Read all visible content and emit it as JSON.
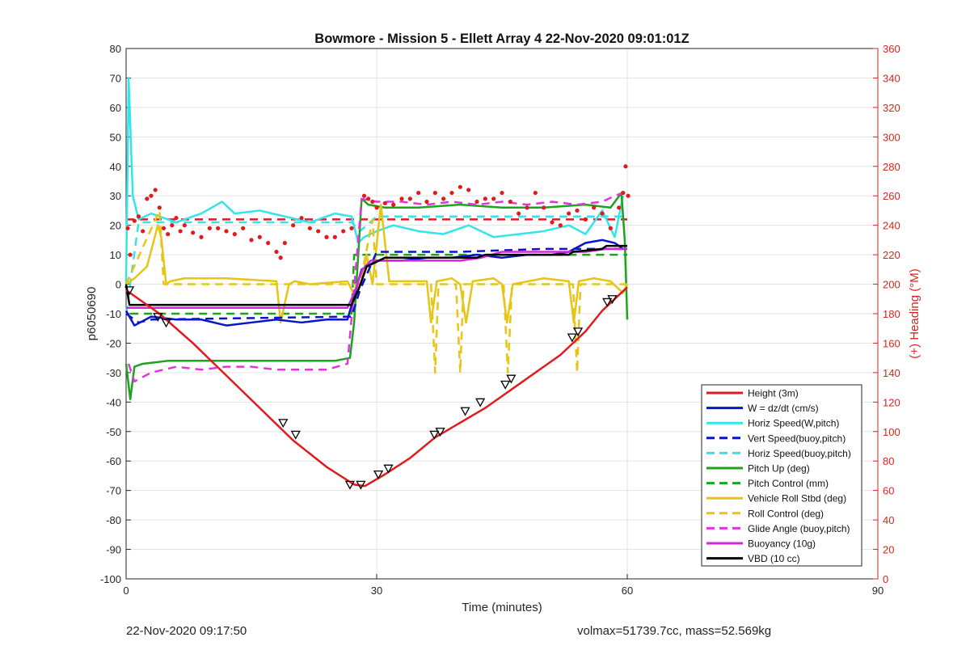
{
  "chart_data": {
    "type": "line",
    "title": "Bowmore - Mission 5 - Ellett Array 4 22-Nov-2020 09:01:01Z",
    "xlabel": "Time (minutes)",
    "ylabel": "p6050690",
    "y2label": "(+) Heading (°M)",
    "xlim": [
      0,
      90
    ],
    "ylim": [
      -100,
      80
    ],
    "y2lim": [
      0,
      360
    ],
    "xticks": [
      "0",
      "30",
      "60",
      "90"
    ],
    "yticks": [
      "80",
      "70",
      "60",
      "50",
      "40",
      "30",
      "20",
      "10",
      "0",
      "-10",
      "-20",
      "-30",
      "-40",
      "-50",
      "-60",
      "-70",
      "-80",
      "-90",
      "-100"
    ],
    "y2ticks": [
      "360",
      "340",
      "320",
      "300",
      "280",
      "260",
      "240",
      "220",
      "200",
      "180",
      "160",
      "140",
      "120",
      "100",
      "80",
      "60",
      "40",
      "20",
      "0"
    ],
    "grid": true,
    "legend_position": "bottom-right",
    "colors": {
      "height": "#e31a1c",
      "w": "#0a14c8",
      "horiz": "#33e5e8",
      "pitch": "#1aa51a",
      "roll": "#e6c514",
      "glide": "#e333e0",
      "buoyancy": "#d428d8",
      "vbd": "#000000",
      "heading_axis": "#d4261d"
    },
    "series": [
      {
        "name": "Height (3m)",
        "key": "height",
        "style": "solid",
        "x": [
          0,
          4,
          8,
          12,
          16,
          20,
          24,
          27.3,
          28.6,
          31,
          34,
          37,
          40,
          43,
          46,
          49,
          52,
          55,
          57,
          58.5,
          60
        ],
        "y": [
          -2,
          -10,
          -20,
          -31,
          -42,
          -53,
          -62,
          -68,
          -68.5,
          -64.5,
          -59,
          -52,
          -47,
          -42,
          -36,
          -30,
          -24,
          -16,
          -9,
          -5,
          -1
        ]
      },
      {
        "name": "W = dz/dt (cm/s)",
        "key": "w",
        "style": "solid",
        "x": [
          0,
          1,
          3,
          6,
          9,
          12,
          15,
          18,
          21,
          24,
          26.5,
          27.2,
          28.2,
          30,
          33,
          36,
          39,
          42,
          45,
          48,
          51,
          53,
          55,
          57,
          58.5,
          59.5,
          60
        ],
        "y": [
          -9,
          -14,
          -11,
          -12,
          -12,
          -14,
          -13,
          -12,
          -13,
          -12,
          -12,
          -5,
          5,
          8,
          8,
          9,
          9,
          10,
          9,
          10,
          10,
          11,
          14,
          15,
          14,
          12,
          12
        ]
      },
      {
        "name": "Horiz Speed(W,pitch)",
        "key": "horiz",
        "style": "solid",
        "x": [
          0,
          0.3,
          0.8,
          1.5,
          3,
          6,
          9,
          11.5,
          13,
          16,
          19,
          22,
          25,
          27,
          27.8,
          28.5,
          30,
          32,
          35,
          38,
          41,
          44,
          47,
          50,
          53,
          55,
          57,
          58.5,
          59.5
        ],
        "y": [
          0,
          70,
          30,
          22,
          24,
          21,
          24,
          28,
          24,
          25,
          23,
          21,
          24,
          23,
          14,
          16,
          18,
          20,
          18,
          17,
          20,
          16,
          17,
          18,
          20,
          17,
          25,
          16,
          30
        ]
      },
      {
        "name": "Vert Speed(buoy,pitch)",
        "key": "w",
        "style": "dashed",
        "x": [
          0,
          1.5,
          3,
          27,
          28,
          30,
          40,
          50,
          58,
          60
        ],
        "y": [
          -10,
          -13,
          -12,
          -11,
          -2,
          11,
          11,
          12,
          12,
          12
        ]
      },
      {
        "name": "Horiz Speed(buoy,pitch)",
        "key": "horiz",
        "style": "dashed",
        "x": [
          0,
          1.5,
          27,
          28,
          30,
          58,
          60
        ],
        "y": [
          -10,
          21,
          21,
          18,
          23,
          23,
          23
        ]
      },
      {
        "name": "Pitch Up (deg)",
        "key": "pitch",
        "style": "solid",
        "x": [
          0,
          0.5,
          1,
          2,
          5,
          10,
          15,
          20,
          25,
          26.8,
          27.3,
          28.2,
          29,
          31,
          35,
          40,
          45,
          50,
          55,
          58,
          59.3,
          59.7,
          60
        ],
        "y": [
          -27,
          -39,
          -28,
          -27,
          -26,
          -26,
          -26,
          -26,
          -26,
          -25,
          -13,
          29,
          27,
          26,
          26,
          27,
          26,
          26,
          27,
          26,
          31,
          15,
          -12
        ]
      },
      {
        "name": "Pitch Control (mm)",
        "key": "pitch",
        "style": "dashed",
        "x": [
          0.5,
          27,
          27.3,
          28.3,
          60
        ],
        "y": [
          -10,
          -10,
          10,
          10,
          10
        ]
      },
      {
        "name": "Vehicle Roll Stbd (deg)",
        "key": "roll",
        "style": "solid",
        "x": [
          0,
          1,
          2.5,
          3.8,
          4.2,
          4.8,
          5.3,
          7,
          12,
          18,
          18.5,
          19.5,
          20.2,
          22,
          26.5,
          27.2,
          28.2,
          28.8,
          29.5,
          30.5,
          31.5,
          33,
          36,
          36.5,
          37.2,
          39,
          40,
          40.7,
          41.5,
          44,
          45,
          45.6,
          46.3,
          50,
          53,
          53.6,
          54.2,
          56,
          58,
          59.5,
          60
        ],
        "y": [
          0,
          2,
          6,
          20,
          16,
          0,
          1,
          2,
          2,
          1,
          -13,
          0,
          1,
          0,
          1,
          -3,
          0,
          10,
          0,
          27,
          1,
          1,
          1,
          -13,
          1,
          2,
          0,
          -13,
          1,
          2,
          0,
          -13,
          0,
          2,
          1,
          -13,
          1,
          2,
          1,
          -3,
          0
        ]
      },
      {
        "name": "Roll Control (deg)",
        "key": "roll",
        "style": "dashed",
        "x": [
          0,
          4,
          4.5,
          27,
          28,
          29.5,
          30,
          31,
          36.5,
          37,
          37.4,
          39.5,
          40,
          40.4,
          42.5,
          45.2,
          45.7,
          46.2,
          53.5,
          54,
          54.4,
          60
        ],
        "y": [
          0,
          25,
          0,
          0,
          0,
          22,
          0,
          0,
          0,
          -30,
          0,
          0,
          -30,
          0,
          0,
          0,
          -30,
          0,
          0,
          -30,
          0,
          0
        ]
      },
      {
        "name": "Glide Angle (buoy,pitch)",
        "key": "glide",
        "style": "dashed",
        "x": [
          0.3,
          1,
          3,
          6,
          9,
          12,
          15,
          18,
          21,
          24,
          26.5,
          27.2,
          28.2,
          30,
          33,
          36,
          39,
          42,
          45,
          48,
          51,
          54,
          57,
          58.5,
          59.5
        ],
        "y": [
          -27,
          -33,
          -30,
          -28,
          -29,
          -28,
          -28,
          -29,
          -29,
          -29,
          -27,
          -5,
          29,
          28,
          28,
          27,
          28,
          27,
          28,
          27,
          28,
          27,
          28,
          30,
          31
        ]
      },
      {
        "name": "Buoyancy (10g)",
        "key": "buoyancy",
        "style": "solid",
        "x": [
          0,
          1,
          26.5,
          27.3,
          28.3,
          29.3,
          32,
          40,
          42.5,
          45,
          55,
          57.5,
          60
        ],
        "y": [
          -8,
          -8,
          -8,
          -3,
          5,
          8,
          8,
          8,
          9,
          11,
          11,
          12,
          12
        ]
      },
      {
        "name": "VBD (10 cc)",
        "key": "vbd",
        "style": "solid",
        "x": [
          0,
          0.4,
          27,
          27.8,
          28.8,
          31,
          42,
          43,
          53,
          53.5,
          57,
          57.5,
          60
        ],
        "y": [
          0,
          -7,
          -7,
          -2,
          6,
          9,
          9,
          10,
          10,
          11,
          12,
          13,
          13
        ]
      }
    ],
    "heading_dashed": {
      "x": [
        0,
        27,
        27.3,
        60
      ],
      "y": [
        244,
        244,
        244,
        244
      ]
    },
    "heading_dots": {
      "x": [
        0.2,
        0.5,
        1,
        1.5,
        2,
        2.5,
        3,
        3.5,
        4,
        4.5,
        5,
        5.5,
        6,
        6.5,
        7,
        8,
        9,
        10,
        11,
        12,
        13,
        14,
        15,
        16,
        17,
        18,
        18.5,
        19,
        20,
        21,
        22,
        23,
        24,
        25,
        26,
        27,
        28.5,
        29,
        29.5,
        30,
        31,
        32,
        33,
        34,
        35,
        36,
        37,
        38,
        39,
        40,
        41,
        42,
        43,
        44,
        45,
        46,
        47,
        48,
        49,
        50,
        51,
        52,
        53,
        54,
        55,
        56,
        57,
        58,
        59,
        59.5,
        59.8,
        60.1
      ],
      "y": [
        238,
        220,
        243,
        246,
        236,
        258,
        260,
        264,
        252,
        238,
        234,
        240,
        245,
        236,
        240,
        235,
        232,
        238,
        238,
        236,
        234,
        238,
        230,
        232,
        228,
        222,
        218,
        228,
        240,
        245,
        238,
        236,
        232,
        232,
        236,
        238,
        260,
        258,
        256,
        252,
        255,
        254,
        258,
        258,
        262,
        256,
        262,
        258,
        262,
        266,
        264,
        256,
        258,
        258,
        262,
        256,
        248,
        252,
        262,
        252,
        242,
        240,
        248,
        250,
        244,
        252,
        248,
        238,
        252,
        262,
        280,
        260
      ]
    },
    "triangles": {
      "x": [
        0.4,
        3.8,
        4.8,
        18.8,
        20.3,
        26.8,
        28.1,
        30.2,
        31.4,
        36.9,
        37.6,
        40.6,
        42.4,
        45.4,
        46.1,
        53.4,
        54.1,
        57.6,
        58.2
      ],
      "y": [
        -2,
        -11,
        -13,
        -47,
        -51,
        -68,
        -68,
        -64.5,
        -62.5,
        -51,
        -50,
        -43,
        -40,
        -34,
        -32,
        -18,
        -16,
        -6,
        -5
      ]
    }
  },
  "footer": {
    "left": "22-Nov-2020 09:17:50",
    "right": "volmax=51739.7cc, mass=52.569kg"
  }
}
